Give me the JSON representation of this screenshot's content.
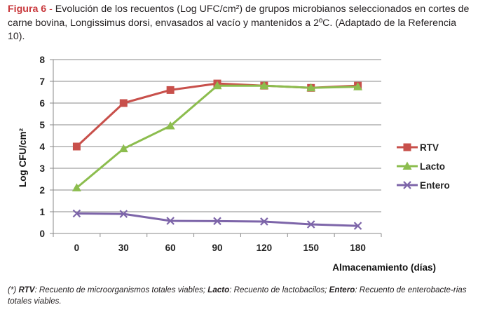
{
  "caption": {
    "figure_label": "Figura 6",
    "separator": " - ",
    "text": "Evolución de los recuentos (Log UFC/cm²) de grupos microbianos seleccionados en cortes de carne bovina, Longissimus dorsi, envasados al vacío y mantenidos a 2ºC. (Adaptado de la Referencia 10)."
  },
  "chart_data": {
    "type": "line",
    "categories": [
      "0",
      "30",
      "60",
      "90",
      "120",
      "150",
      "180"
    ],
    "series": [
      {
        "name": "RTV",
        "values": [
          4.0,
          6.0,
          6.6,
          6.9,
          6.8,
          6.7,
          6.8
        ],
        "color": "#c8504b",
        "marker": "square"
      },
      {
        "name": "Lacto",
        "values": [
          2.1,
          3.9,
          4.95,
          6.8,
          6.8,
          6.7,
          6.75
        ],
        "color": "#8cbd4e",
        "marker": "triangle"
      },
      {
        "name": "Entero",
        "values": [
          0.92,
          0.9,
          0.58,
          0.57,
          0.55,
          0.42,
          0.35
        ],
        "color": "#7d65a9",
        "marker": "x"
      }
    ],
    "xlabel": "Almacenamiento (días)",
    "ylabel": "Log CFU/cm²",
    "ylim": [
      0,
      8
    ],
    "yticks": [
      "0",
      "1",
      "2",
      "3",
      "4",
      "5",
      "6",
      "7",
      "8"
    ],
    "grid": true,
    "legend": "right"
  },
  "footnote": {
    "intro": "(*) ",
    "items": [
      {
        "term": "RTV",
        "desc": ": Recuento de microorganismos totales viables; "
      },
      {
        "term": "Lacto",
        "desc": ": Recuento de lactobacilos; "
      },
      {
        "term": "Entero",
        "desc": ": Recuento de enterobacte-rias totales viables."
      }
    ]
  }
}
